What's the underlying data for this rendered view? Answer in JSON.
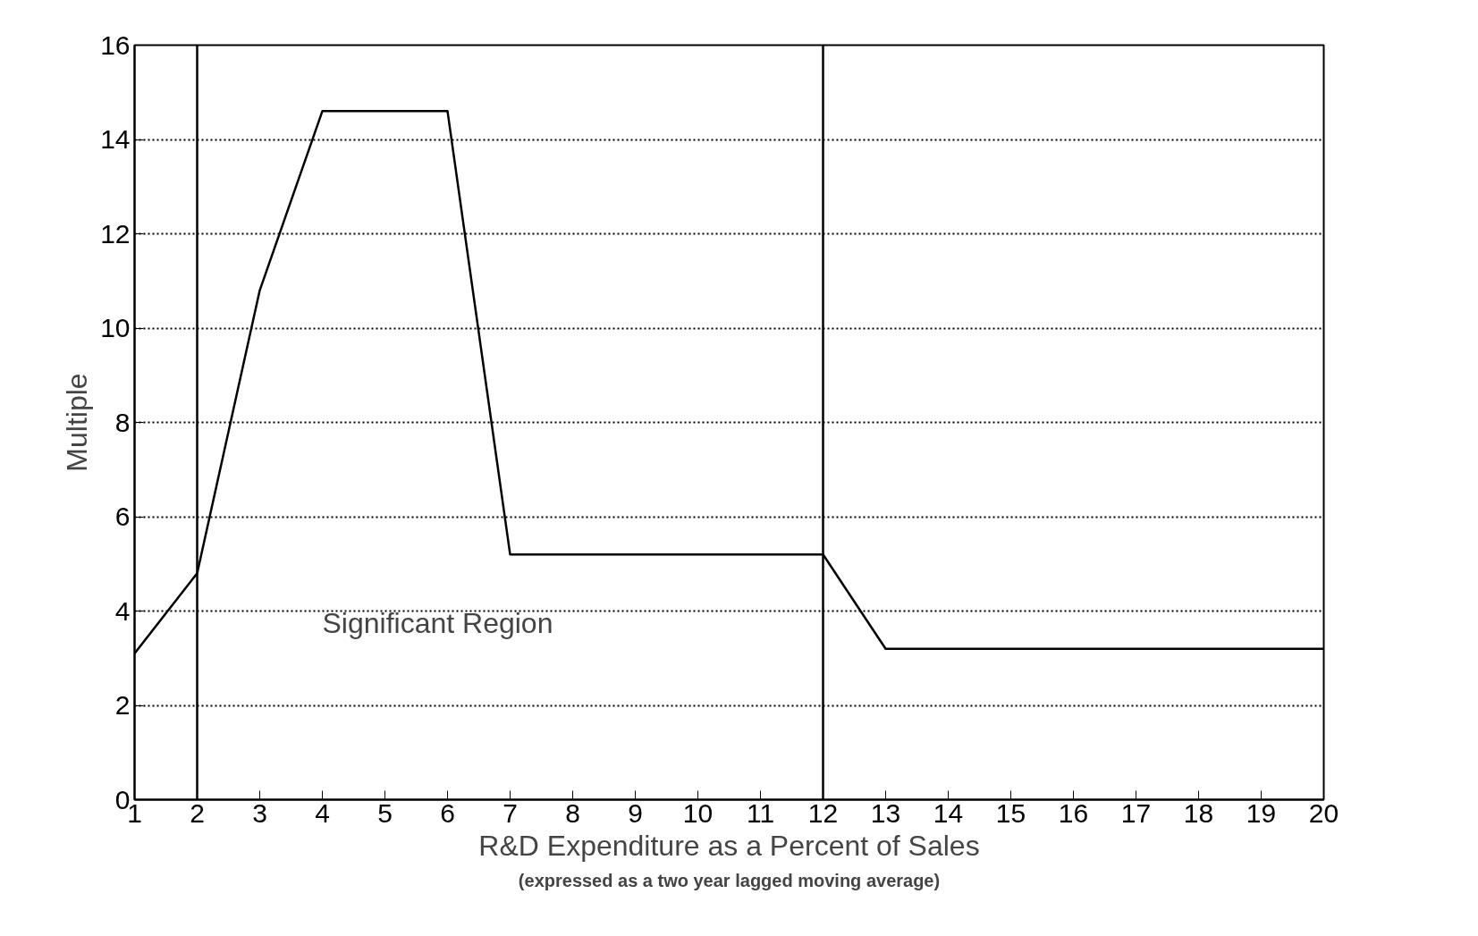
{
  "chart_data": {
    "type": "line",
    "xlabel": "R&D Expenditure as a Percent of Sales",
    "ylabel": "Multiple",
    "x": [
      1,
      2,
      3,
      4,
      6,
      7,
      12,
      13,
      20
    ],
    "series": [
      {
        "color": "#000000",
        "values": [
          3.1,
          4.8,
          10.8,
          14.6,
          14.6,
          5.2,
          5.2,
          3.2,
          3.2
        ]
      }
    ],
    "xlim": [
      1,
      20
    ],
    "ylim": [
      0,
      16
    ],
    "xticks": [
      1,
      2,
      3,
      4,
      5,
      6,
      7,
      8,
      9,
      10,
      11,
      12,
      13,
      14,
      15,
      16,
      17,
      18,
      19,
      20
    ],
    "yticks": [
      0,
      2,
      4,
      6,
      8,
      10,
      12,
      14,
      16
    ],
    "grid": "y",
    "marker": "none",
    "line_style": "solid",
    "ref_lines": [
      {
        "axis": "x",
        "value": 2,
        "label": null
      },
      {
        "axis": "x",
        "value": 12,
        "label": null
      }
    ],
    "annotations": [
      "Significant Region",
      "(expressed as a two year lagged moving average)"
    ]
  }
}
